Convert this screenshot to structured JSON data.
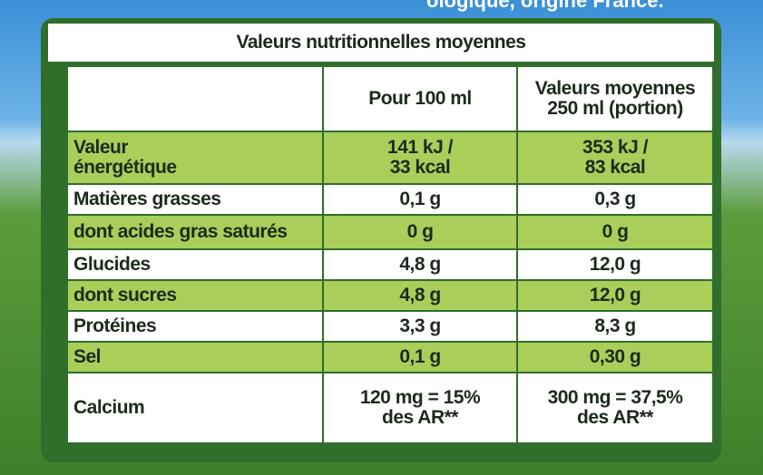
{
  "top_text": "ologique, origine France.",
  "table": {
    "title": "Valeurs nutritionnelles moyennes",
    "header": [
      "Pour 100 ml",
      "Valeurs moyennes\n250 ml (portion)"
    ],
    "rows": [
      [
        "Valeur\nénergétique",
        "141 kJ /\n33 kcal",
        "353 kJ /\n83 kcal"
      ],
      [
        "Matières grasses",
        "0,1 g",
        "0,3 g"
      ],
      [
        "dont acides gras saturés",
        "0 g",
        "0 g"
      ],
      [
        "Glucides",
        "4,8 g",
        "12,0 g"
      ],
      [
        "dont sucres",
        "4,8 g",
        "12,0 g"
      ],
      [
        "Protéines",
        "3,3 g",
        "8,3 g"
      ],
      [
        "Sel",
        "0,1 g",
        "0,30 g"
      ],
      [
        "Calcium",
        "120 mg = 15%\ndes AR**",
        "300 mg = 37,5%\ndes AR**"
      ]
    ]
  }
}
